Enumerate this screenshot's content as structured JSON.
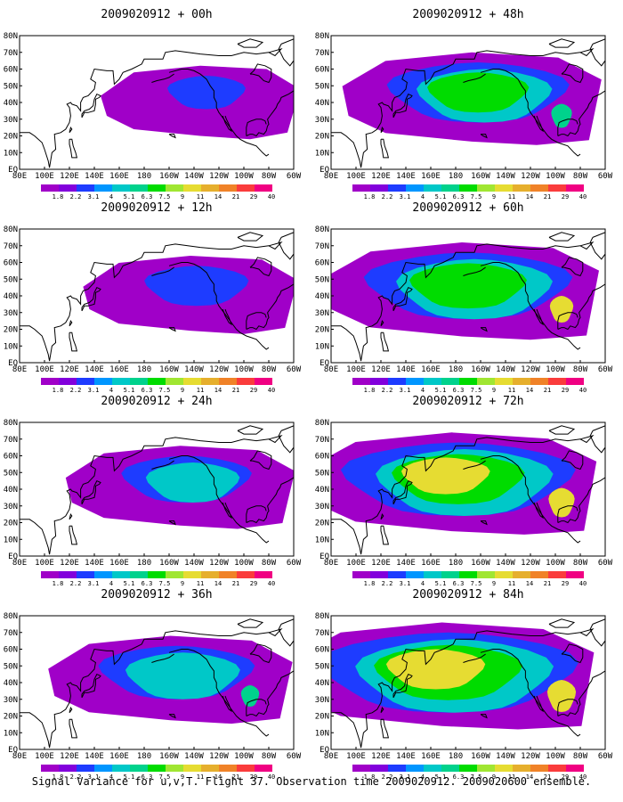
{
  "caption": "Signal Variance for u,v,T. Flight 37. Observation time 2009020912. 2009020600 ensemble.",
  "colorbar": {
    "labels": [
      "1.8",
      "2.2",
      "3.1",
      "4",
      "5.1",
      "6.3",
      "7.5",
      "9",
      "11",
      "14",
      "21",
      "29",
      "40"
    ],
    "colors": [
      "#a000c8",
      "#8200dc",
      "#1e3cff",
      "#0096ff",
      "#00c8c8",
      "#00d28c",
      "#00dc00",
      "#a0e632",
      "#e6dc32",
      "#e6af2d",
      "#f08228",
      "#fa3c3c",
      "#f00082"
    ]
  },
  "lon_labels": [
    "80E",
    "100E",
    "120E",
    "140E",
    "160E",
    "180",
    "160W",
    "140W",
    "120W",
    "100W",
    "80W",
    "60W"
  ],
  "lat_labels": [
    "EQ",
    "10N",
    "20N",
    "30N",
    "40N",
    "50N",
    "60N",
    "70N",
    "80N"
  ],
  "panels": [
    {
      "title": "2009020912 + 00h",
      "level": 0
    },
    {
      "title": "2009020912 + 48h",
      "level": 4
    },
    {
      "title": "2009020912 + 12h",
      "level": 1
    },
    {
      "title": "2009020912 + 60h",
      "level": 5
    },
    {
      "title": "2009020912 + 24h",
      "level": 2
    },
    {
      "title": "2009020912 + 72h",
      "level": 6
    },
    {
      "title": "2009020912 + 36h",
      "level": 3
    },
    {
      "title": "2009020912 + 84h",
      "level": 7
    }
  ]
}
